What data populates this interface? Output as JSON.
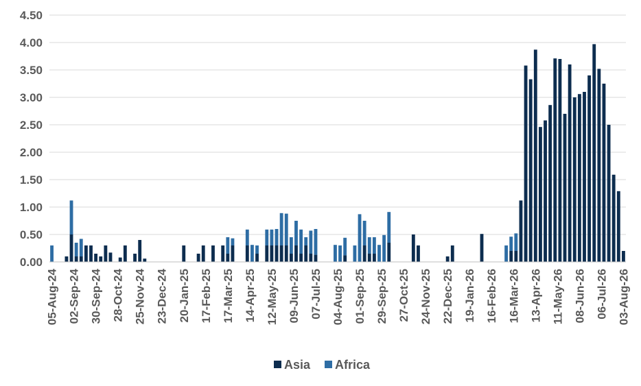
{
  "chart_data": {
    "type": "bar",
    "stacked": true,
    "title": "",
    "xlabel": "",
    "ylabel": "",
    "ylim": [
      0,
      4.5
    ],
    "yticks": [
      "0.00",
      "0.50",
      "1.00",
      "1.50",
      "2.00",
      "2.50",
      "3.00",
      "3.50",
      "4.00",
      "4.50"
    ],
    "grid": true,
    "legend_position": "bottom",
    "x_tick_labels": [
      "05-Aug-24",
      "02-Sep-24",
      "30-Sep-24",
      "28-Oct-24",
      "25-Nov-24",
      "23-Dec-24",
      "20-Jan-25",
      "17-Feb-25",
      "17-Mar-25",
      "14-Apr-25",
      "12-May-25",
      "09-Jun-25",
      "07-Jul-25",
      "04-Aug-25",
      "01-Sep-25",
      "29-Sep-25",
      "27-Oct-25",
      "24-Nov-25",
      "22-Dec-25",
      "19-Jan-26",
      "16-Feb-26",
      "16-Mar-26",
      "13-Apr-26",
      "11-May-26",
      "08-Jun-26",
      "06-Jul-26",
      "03-Aug-26"
    ],
    "series": [
      {
        "name": "Asia",
        "color": "#0d2d4f",
        "values": [
          0,
          0,
          0,
          0.1,
          0.5,
          0.1,
          0.1,
          0.3,
          0.3,
          0.15,
          0.1,
          0.3,
          0.17,
          0,
          0.08,
          0.3,
          0,
          0.15,
          0.4,
          0.06,
          0,
          0,
          0,
          0,
          0,
          0,
          0,
          0.3,
          0,
          0,
          0.15,
          0.3,
          0,
          0.3,
          0,
          0.3,
          0.15,
          0.3,
          0,
          0,
          0.3,
          0,
          0.15,
          0,
          0.3,
          0.3,
          0.3,
          0.3,
          0.3,
          0.15,
          0.3,
          0.15,
          0.3,
          0.15,
          0.13,
          0,
          0,
          0,
          0,
          0,
          0.12,
          0,
          0,
          0,
          0.3,
          0.15,
          0.15,
          0,
          0,
          0.35,
          0,
          0,
          0,
          0,
          0.5,
          0.3,
          0,
          0,
          0,
          0,
          0,
          0.1,
          0.3,
          0,
          0,
          0,
          0,
          0,
          0.51,
          0,
          0,
          0,
          0,
          0,
          0.2,
          0.2,
          1.12,
          3.58,
          3.33,
          3.87,
          2.46,
          2.58,
          2.86,
          3.71,
          3.7,
          2.7,
          3.6,
          3.0,
          3.06,
          3.1,
          3.4,
          3.97,
          3.52,
          3.25,
          2.5,
          1.59,
          1.29,
          0.2
        ]
      },
      {
        "name": "Africa",
        "color": "#2e6da4",
        "values": [
          0.3,
          0,
          0,
          0,
          0.62,
          0.25,
          0.32,
          0,
          0,
          0,
          0,
          0,
          0,
          0,
          0,
          0,
          0,
          0,
          0,
          0,
          0,
          0,
          0,
          0,
          0,
          0,
          0,
          0,
          0,
          0,
          0,
          0,
          0,
          0,
          0,
          0,
          0.3,
          0.13,
          0,
          0,
          0.29,
          0.31,
          0.15,
          0,
          0.29,
          0.29,
          0.3,
          0.59,
          0.58,
          0.3,
          0.45,
          0.44,
          0.15,
          0.42,
          0.47,
          0,
          0,
          0,
          0.31,
          0.3,
          0.32,
          0,
          0.3,
          0.87,
          0.45,
          0.3,
          0.3,
          0.31,
          0.49,
          0.56,
          0,
          0,
          0,
          0,
          0,
          0,
          0,
          0,
          0,
          0,
          0,
          0,
          0,
          0,
          0,
          0,
          0,
          0,
          0,
          0,
          0,
          0,
          0,
          0.3,
          0.26,
          0.32,
          0,
          0,
          0,
          0,
          0,
          0,
          0,
          0,
          0,
          0,
          0,
          0,
          0,
          0,
          0,
          0,
          0,
          0,
          0,
          0,
          0,
          0,
          0
        ]
      }
    ],
    "legend": [
      "Asia",
      "Africa"
    ]
  }
}
